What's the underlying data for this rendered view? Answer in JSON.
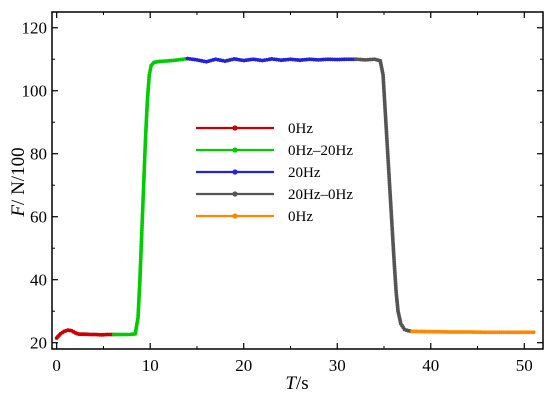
{
  "chart_data": {
    "type": "line",
    "title": "",
    "xlabel": {
      "symbol": "T",
      "unit": "/s"
    },
    "ylabel": {
      "symbol": "F",
      "unit": "/  N/100"
    },
    "xlim": [
      -0.5,
      52
    ],
    "ylim": [
      18,
      125
    ],
    "xticks": [
      0,
      10,
      20,
      30,
      40,
      50
    ],
    "yticks": [
      20,
      40,
      60,
      80,
      100,
      120
    ],
    "xtick_labels": [
      "0",
      "10",
      "20",
      "30",
      "40",
      "50"
    ],
    "ytick_labels": [
      "20",
      "40",
      "60",
      "80",
      "100",
      "120"
    ],
    "grid": false,
    "legend_position": "center-left",
    "series": [
      {
        "name": "0Hz",
        "color": "#cc0000",
        "points": [
          [
            0.0,
            21.5
          ],
          [
            0.4,
            22.8
          ],
          [
            0.8,
            23.6
          ],
          [
            1.2,
            24.0
          ],
          [
            1.6,
            23.8
          ],
          [
            2.0,
            23.1
          ],
          [
            2.4,
            22.7
          ],
          [
            3.0,
            22.7
          ],
          [
            3.6,
            22.6
          ],
          [
            4.2,
            22.6
          ],
          [
            4.8,
            22.5
          ],
          [
            5.4,
            22.6
          ],
          [
            6.1,
            22.6
          ]
        ]
      },
      {
        "name": "0Hz–20Hz",
        "color": "#00cc00",
        "points": [
          [
            6.1,
            22.6
          ],
          [
            7.0,
            22.6
          ],
          [
            7.8,
            22.6
          ],
          [
            8.4,
            22.8
          ],
          [
            8.7,
            28.0
          ],
          [
            8.9,
            40.0
          ],
          [
            9.1,
            55.0
          ],
          [
            9.3,
            70.0
          ],
          [
            9.5,
            85.0
          ],
          [
            9.7,
            97.0
          ],
          [
            9.9,
            105.0
          ],
          [
            10.1,
            108.0
          ],
          [
            10.4,
            109.0
          ],
          [
            11.0,
            109.3
          ],
          [
            12.0,
            109.5
          ],
          [
            13.0,
            109.8
          ],
          [
            14.0,
            110.2
          ]
        ]
      },
      {
        "name": "20Hz",
        "color": "#2222dd",
        "points": [
          [
            14.0,
            110.2
          ],
          [
            15.0,
            109.8
          ],
          [
            16.0,
            109.2
          ],
          [
            17.0,
            110.0
          ],
          [
            18.0,
            109.4
          ],
          [
            19.0,
            110.1
          ],
          [
            20.0,
            109.6
          ],
          [
            21.0,
            110.0
          ],
          [
            22.0,
            109.6
          ],
          [
            23.0,
            110.1
          ],
          [
            24.0,
            109.7
          ],
          [
            25.0,
            110.0
          ],
          [
            26.0,
            109.7
          ],
          [
            27.0,
            110.0
          ],
          [
            28.0,
            109.8
          ],
          [
            29.0,
            110.0
          ],
          [
            30.0,
            109.9
          ],
          [
            31.0,
            110.0
          ],
          [
            32.0,
            110.0
          ]
        ]
      },
      {
        "name": "20Hz–0Hz",
        "color": "#555555",
        "points": [
          [
            32.0,
            110.0
          ],
          [
            33.0,
            109.8
          ],
          [
            34.0,
            110.0
          ],
          [
            34.6,
            109.5
          ],
          [
            34.9,
            105.0
          ],
          [
            35.1,
            95.0
          ],
          [
            35.3,
            85.0
          ],
          [
            35.5,
            75.0
          ],
          [
            35.7,
            65.0
          ],
          [
            35.9,
            55.0
          ],
          [
            36.1,
            45.0
          ],
          [
            36.3,
            36.0
          ],
          [
            36.5,
            30.0
          ],
          [
            36.8,
            26.0
          ],
          [
            37.2,
            24.2
          ],
          [
            37.6,
            23.8
          ],
          [
            38.0,
            23.6
          ]
        ]
      },
      {
        "name": "0Hz",
        "color": "#ff8800",
        "points": [
          [
            38.0,
            23.6
          ],
          [
            40.0,
            23.5
          ],
          [
            42.0,
            23.4
          ],
          [
            44.0,
            23.4
          ],
          [
            46.0,
            23.3
          ],
          [
            48.0,
            23.3
          ],
          [
            50.0,
            23.3
          ],
          [
            51.0,
            23.3
          ]
        ]
      }
    ]
  }
}
